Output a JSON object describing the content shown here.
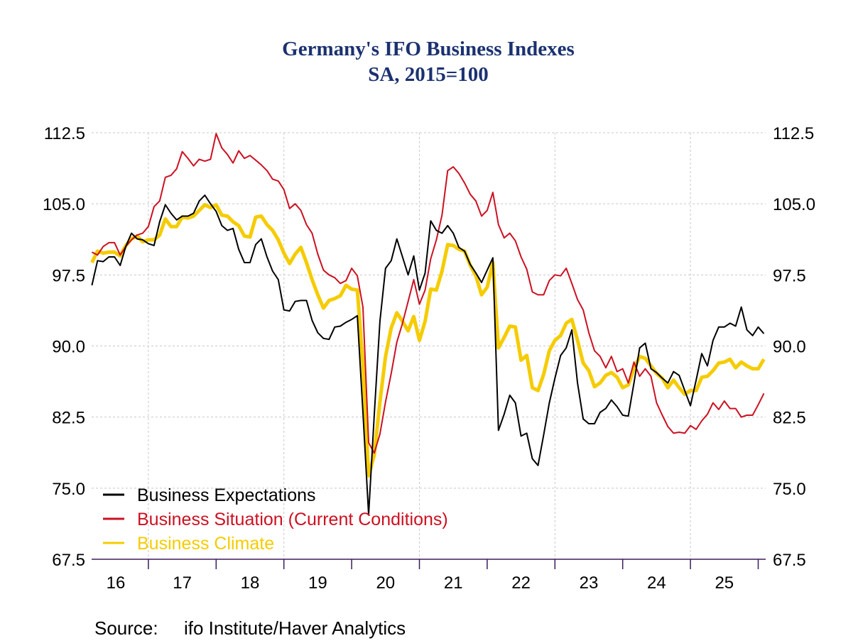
{
  "chart_data": {
    "type": "line",
    "title": "Germany's IFO Business Indexes",
    "subtitle": "SA, 2015=100",
    "source_label": "Source:",
    "source_text": "ifo Institute/Haver Analytics",
    "xlabel": "",
    "ylabel": "",
    "ylim": [
      67.5,
      112.5
    ],
    "yticks": [
      "112.5",
      "105.0",
      "97.5",
      "90.0",
      "82.5",
      "75.0",
      "67.5"
    ],
    "ytick_values": [
      112.5,
      105.0,
      97.5,
      90.0,
      82.5,
      75.0,
      67.5
    ],
    "xlim": [
      "2016-01",
      "2026-02"
    ],
    "xtick_labels": [
      "16",
      "17",
      "18",
      "19",
      "20",
      "21",
      "22",
      "23",
      "24",
      "25"
    ],
    "grid": true,
    "right_axis_mirrors_left": true,
    "legend_placement": "bottom-left",
    "x": [
      "2016-03",
      "2016-04",
      "2016-05",
      "2016-06",
      "2016-07",
      "2016-08",
      "2016-09",
      "2016-10",
      "2016-11",
      "2016-12",
      "2017-01",
      "2017-02",
      "2017-03",
      "2017-04",
      "2017-05",
      "2017-06",
      "2017-07",
      "2017-08",
      "2017-09",
      "2017-10",
      "2017-11",
      "2017-12",
      "2018-01",
      "2018-02",
      "2018-03",
      "2018-04",
      "2018-05",
      "2018-06",
      "2018-07",
      "2018-08",
      "2018-09",
      "2018-10",
      "2018-11",
      "2018-12",
      "2019-01",
      "2019-02",
      "2019-03",
      "2019-04",
      "2019-05",
      "2019-06",
      "2019-07",
      "2019-08",
      "2019-09",
      "2019-10",
      "2019-11",
      "2019-12",
      "2020-01",
      "2020-02",
      "2020-03",
      "2020-04",
      "2020-05",
      "2020-06",
      "2020-07",
      "2020-08",
      "2020-09",
      "2020-10",
      "2020-11",
      "2020-12",
      "2021-01",
      "2021-02",
      "2021-03",
      "2021-04",
      "2021-05",
      "2021-06",
      "2021-07",
      "2021-08",
      "2021-09",
      "2021-10",
      "2021-11",
      "2021-12",
      "2022-01",
      "2022-02",
      "2022-03",
      "2022-04",
      "2022-05",
      "2022-06",
      "2022-07",
      "2022-08",
      "2022-09",
      "2022-10",
      "2022-11",
      "2022-12",
      "2023-01",
      "2023-02",
      "2023-03",
      "2023-04",
      "2023-05",
      "2023-06",
      "2023-07",
      "2023-08",
      "2023-09",
      "2023-10",
      "2023-11",
      "2023-12",
      "2024-01",
      "2024-02",
      "2024-03",
      "2024-04",
      "2024-05",
      "2024-06",
      "2024-07",
      "2024-08",
      "2024-09",
      "2024-10",
      "2024-11",
      "2024-12",
      "2025-01",
      "2025-02",
      "2025-03",
      "2025-04",
      "2025-05",
      "2025-06",
      "2025-07",
      "2025-08",
      "2025-09",
      "2025-10",
      "2025-11",
      "2025-12",
      "2026-01",
      "2026-02"
    ],
    "series": [
      {
        "name": "Business Expectations",
        "color": "#000000",
        "values": [
          96.4,
          99.0,
          98.9,
          99.4,
          99.4,
          98.5,
          100.5,
          101.9,
          101.3,
          101.2,
          100.8,
          100.6,
          103.1,
          104.9,
          104.0,
          103.3,
          103.7,
          103.7,
          104.0,
          105.3,
          105.9,
          105.0,
          104.2,
          102.7,
          102.2,
          102.4,
          100.2,
          98.8,
          98.8,
          100.7,
          101.3,
          99.4,
          97.9,
          97.0,
          93.8,
          93.7,
          94.7,
          94.8,
          94.8,
          92.7,
          91.4,
          90.8,
          90.7,
          92.0,
          92.1,
          92.5,
          92.8,
          93.2,
          83.0,
          72.2,
          82.7,
          92.6,
          98.2,
          99.0,
          101.3,
          99.4,
          97.5,
          99.5,
          95.9,
          97.7,
          103.2,
          102.2,
          101.9,
          102.7,
          101.9,
          100.4,
          100.0,
          98.6,
          97.7,
          96.7,
          98.0,
          99.3,
          81.1,
          82.8,
          84.8,
          84.0,
          80.5,
          80.8,
          78.1,
          77.4,
          80.6,
          84.0,
          86.6,
          89.0,
          89.8,
          91.7,
          86.1,
          82.3,
          81.8,
          81.8,
          83.0,
          83.4,
          84.3,
          83.6,
          82.7,
          82.6,
          86.1,
          89.8,
          90.3,
          87.6,
          87.2,
          86.6,
          86.1,
          87.3,
          86.9,
          85.3,
          83.7,
          86.4,
          89.2,
          87.9,
          90.6,
          92.0,
          92.0,
          92.4,
          92.1,
          94.1,
          91.7,
          91.1,
          92.0,
          91.3
        ]
      },
      {
        "name": "Business Situation (Current Conditions)",
        "color": "#cc1122",
        "values": [
          99.9,
          99.6,
          100.5,
          100.9,
          100.9,
          99.6,
          100.5,
          101.2,
          101.7,
          101.9,
          102.6,
          104.7,
          105.3,
          107.8,
          108.0,
          108.7,
          110.5,
          109.8,
          109.0,
          109.7,
          109.5,
          109.7,
          112.4,
          110.9,
          110.2,
          109.3,
          110.6,
          109.8,
          110.1,
          109.6,
          109.1,
          108.5,
          107.6,
          107.4,
          106.5,
          104.5,
          105.0,
          104.3,
          102.8,
          101.9,
          99.7,
          98.0,
          97.5,
          97.2,
          96.6,
          96.9,
          98.2,
          97.4,
          94.1,
          79.8,
          78.7,
          80.7,
          84.1,
          87.1,
          90.4,
          92.4,
          94.7,
          97.0,
          94.4,
          95.9,
          99.2,
          101.2,
          103.8,
          108.5,
          108.9,
          108.2,
          107.2,
          106.0,
          105.3,
          103.7,
          104.3,
          106.2,
          102.8,
          101.4,
          101.9,
          101.1,
          99.4,
          98.1,
          95.7,
          95.4,
          95.4,
          96.9,
          97.5,
          97.4,
          98.2,
          96.6,
          94.9,
          93.8,
          91.4,
          89.5,
          88.9,
          87.7,
          88.9,
          87.3,
          87.6,
          86.1,
          88.3,
          86.8,
          87.6,
          86.8,
          84.0,
          82.7,
          81.5,
          80.8,
          80.9,
          80.8,
          81.6,
          81.2,
          82.1,
          82.8,
          84.0,
          83.3,
          84.2,
          83.4,
          83.4,
          82.5,
          82.7,
          82.7,
          83.8,
          85.0
        ]
      },
      {
        "name": "Business Climate",
        "color": "#f5cc00",
        "values": [
          98.8,
          100.0,
          99.8,
          99.9,
          99.9,
          99.5,
          100.6,
          101.3,
          101.6,
          101.0,
          101.2,
          101.2,
          101.7,
          103.4,
          102.6,
          102.6,
          103.6,
          103.5,
          103.7,
          104.3,
          104.9,
          104.6,
          104.9,
          103.8,
          103.7,
          103.1,
          102.7,
          101.6,
          101.5,
          103.6,
          103.7,
          102.8,
          102.2,
          101.2,
          99.8,
          98.7,
          99.7,
          100.4,
          98.8,
          97.0,
          95.4,
          94.0,
          94.8,
          95.0,
          95.3,
          96.4,
          96.0,
          95.9,
          88.0,
          76.3,
          78.5,
          84.1,
          88.9,
          91.9,
          93.5,
          92.6,
          91.6,
          93.1,
          90.6,
          92.6,
          96.0,
          95.9,
          97.9,
          100.7,
          100.6,
          100.2,
          100.0,
          98.5,
          97.4,
          95.4,
          96.2,
          98.8,
          89.8,
          90.9,
          92.1,
          92.0,
          88.5,
          89.0,
          85.6,
          85.3,
          87.0,
          89.5,
          90.6,
          91.1,
          92.4,
          92.8,
          90.6,
          88.2,
          87.4,
          85.7,
          86.1,
          86.9,
          87.2,
          86.7,
          85.6,
          85.9,
          87.6,
          88.9,
          88.7,
          87.9,
          87.1,
          86.6,
          85.6,
          86.4,
          85.6,
          84.9,
          85.3,
          85.3,
          86.7,
          86.8,
          87.4,
          88.2,
          88.3,
          88.6,
          87.7,
          88.3,
          87.9,
          87.6,
          87.6,
          88.6
        ]
      }
    ],
    "axis_color": "#3b1d5c"
  }
}
